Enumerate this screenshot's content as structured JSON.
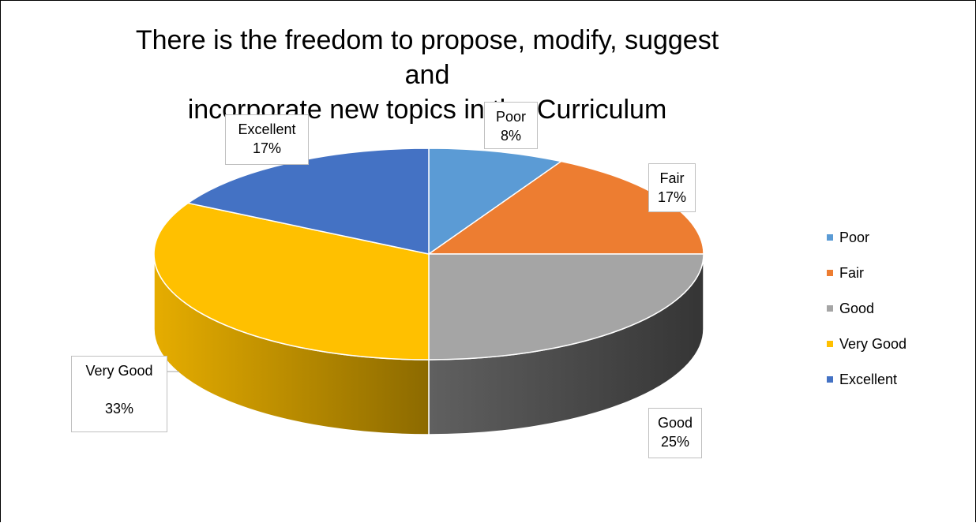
{
  "chart_data": {
    "type": "pie",
    "title_lines": [
      "There is the freedom to propose, modify, suggest and",
      "incorporate new topics in the Curriculum"
    ],
    "categories": [
      "Poor",
      "Fair",
      "Good",
      "Very Good",
      "Excellent"
    ],
    "values": [
      8,
      17,
      25,
      33,
      17
    ],
    "value_labels": [
      "8%",
      "17%",
      "25%",
      "33%",
      "17%"
    ],
    "unit": "%",
    "style": "3d",
    "legend": {
      "position": "right",
      "entries": [
        "Poor",
        "Fair",
        "Good",
        "Very Good",
        "Excellent"
      ]
    },
    "colors": [
      "#5b9bd5",
      "#ed7d31",
      "#a5a5a5",
      "#ffc000",
      "#4472c4"
    ]
  }
}
